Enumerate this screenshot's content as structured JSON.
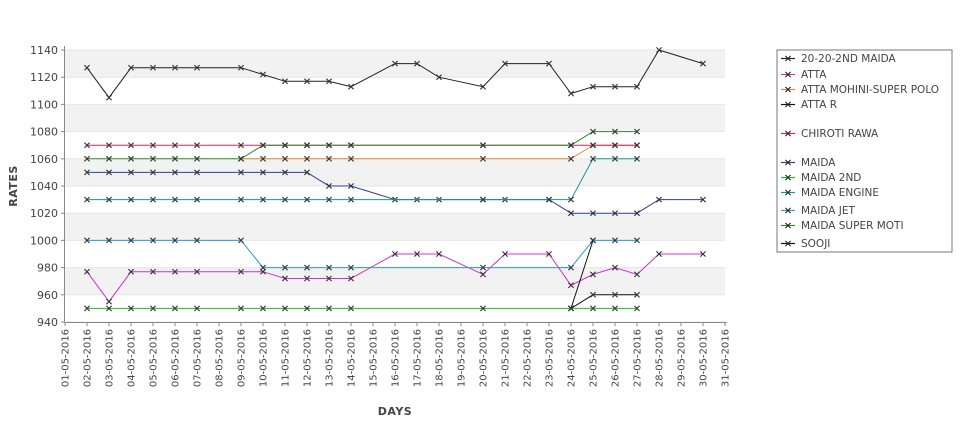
{
  "chart_data": {
    "type": "line",
    "title": "",
    "xlabel": "DAYS",
    "ylabel": "RATES",
    "ylim": [
      940,
      1140
    ],
    "yticks": [
      940,
      960,
      980,
      1000,
      1020,
      1040,
      1060,
      1080,
      1100,
      1120,
      1140
    ],
    "grid": true,
    "legend_position": "right",
    "x_tick_labels": [
      "01-05-2016",
      "02-05-2016",
      "03-05-2016",
      "04-05-2016",
      "05-05-2016",
      "06-05-2016",
      "07-05-2016",
      "08-05-2016",
      "09-05-2016",
      "10-05-2016",
      "11-05-2016",
      "12-05-2016",
      "13-05-2016",
      "14-05-2016",
      "15-05-2016",
      "16-05-2016",
      "17-05-2016",
      "18-05-2016",
      "19-05-2016",
      "20-05-2016",
      "21-05-2016",
      "22-05-2016",
      "23-05-2016",
      "24-05-2016",
      "25-05-2016",
      "26-05-2016",
      "27-05-2016",
      "28-05-2016",
      "29-05-2016",
      "30-05-2016",
      "31-05-2016"
    ],
    "series": [
      {
        "name": "20-20-2ND MAIDA",
        "color": "#222222",
        "points": [
          [
            "02-05-2016",
            1127
          ],
          [
            "03-05-2016",
            1105
          ],
          [
            "04-05-2016",
            1127
          ],
          [
            "05-05-2016",
            1127
          ],
          [
            "06-05-2016",
            1127
          ],
          [
            "07-05-2016",
            1127
          ],
          [
            "09-05-2016",
            1127
          ],
          [
            "10-05-2016",
            1122
          ],
          [
            "11-05-2016",
            1117
          ],
          [
            "12-05-2016",
            1117
          ],
          [
            "13-05-2016",
            1117
          ],
          [
            "14-05-2016",
            1113
          ],
          [
            "16-05-2016",
            1130
          ],
          [
            "17-05-2016",
            1130
          ],
          [
            "18-05-2016",
            1120
          ],
          [
            "20-05-2016",
            1113
          ],
          [
            "21-05-2016",
            1130
          ],
          [
            "23-05-2016",
            1130
          ],
          [
            "24-05-2016",
            1108
          ],
          [
            "25-05-2016",
            1113
          ],
          [
            "26-05-2016",
            1113
          ],
          [
            "27-05-2016",
            1113
          ],
          [
            "28-05-2016",
            1140
          ],
          [
            "30-05-2016",
            1130
          ]
        ]
      },
      {
        "name": "ATTA",
        "color": "#cc33cc",
        "points": [
          [
            "02-05-2016",
            977
          ],
          [
            "03-05-2016",
            955
          ],
          [
            "04-05-2016",
            977
          ],
          [
            "05-05-2016",
            977
          ],
          [
            "06-05-2016",
            977
          ],
          [
            "07-05-2016",
            977
          ],
          [
            "09-05-2016",
            977
          ],
          [
            "10-05-2016",
            977
          ],
          [
            "11-05-2016",
            972
          ],
          [
            "12-05-2016",
            972
          ],
          [
            "13-05-2016",
            972
          ],
          [
            "14-05-2016",
            972
          ],
          [
            "16-05-2016",
            990
          ],
          [
            "17-05-2016",
            990
          ],
          [
            "18-05-2016",
            990
          ],
          [
            "20-05-2016",
            975
          ],
          [
            "21-05-2016",
            990
          ],
          [
            "23-05-2016",
            990
          ],
          [
            "24-05-2016",
            967
          ],
          [
            "25-05-2016",
            975
          ],
          [
            "26-05-2016",
            980
          ],
          [
            "27-05-2016",
            975
          ],
          [
            "28-05-2016",
            990
          ],
          [
            "30-05-2016",
            990
          ]
        ]
      },
      {
        "name": "ATTA MOHINI-SUPER POLO",
        "color": "#e08a2a",
        "points": [
          [
            "09-05-2016",
            1060
          ],
          [
            "10-05-2016",
            1060
          ],
          [
            "11-05-2016",
            1060
          ],
          [
            "12-05-2016",
            1060
          ],
          [
            "13-05-2016",
            1060
          ],
          [
            "14-05-2016",
            1060
          ],
          [
            "20-05-2016",
            1060
          ],
          [
            "24-05-2016",
            1060
          ],
          [
            "25-05-2016",
            1070
          ],
          [
            "26-05-2016",
            1070
          ],
          [
            "27-05-2016",
            1070
          ]
        ]
      },
      {
        "name": "ATTA R",
        "color": "#111111",
        "points": [
          [
            "24-05-2016",
            950
          ],
          [
            "25-05-2016",
            960
          ],
          [
            "26-05-2016",
            960
          ],
          [
            "27-05-2016",
            960
          ]
        ]
      },
      {
        "name": "CHIROTI RAWA",
        "color": "#dd2266",
        "points": [
          [
            "02-05-2016",
            1070
          ],
          [
            "03-05-2016",
            1070
          ],
          [
            "04-05-2016",
            1070
          ],
          [
            "05-05-2016",
            1070
          ],
          [
            "06-05-2016",
            1070
          ],
          [
            "07-05-2016",
            1070
          ],
          [
            "09-05-2016",
            1070
          ],
          [
            "10-05-2016",
            1070
          ],
          [
            "11-05-2016",
            1070
          ],
          [
            "12-05-2016",
            1070
          ],
          [
            "13-05-2016",
            1070
          ],
          [
            "14-05-2016",
            1070
          ],
          [
            "20-05-2016",
            1070
          ],
          [
            "24-05-2016",
            1070
          ],
          [
            "25-05-2016",
            1070
          ],
          [
            "26-05-2016",
            1070
          ],
          [
            "27-05-2016",
            1070
          ]
        ]
      },
      {
        "name": "MAIDA",
        "color": "#2c3f99",
        "points": [
          [
            "02-05-2016",
            1050
          ],
          [
            "03-05-2016",
            1050
          ],
          [
            "04-05-2016",
            1050
          ],
          [
            "05-05-2016",
            1050
          ],
          [
            "06-05-2016",
            1050
          ],
          [
            "07-05-2016",
            1050
          ],
          [
            "09-05-2016",
            1050
          ],
          [
            "10-05-2016",
            1050
          ],
          [
            "11-05-2016",
            1050
          ],
          [
            "12-05-2016",
            1050
          ],
          [
            "13-05-2016",
            1040
          ],
          [
            "14-05-2016",
            1040
          ],
          [
            "16-05-2016",
            1030
          ],
          [
            "17-05-2016",
            1030
          ],
          [
            "18-05-2016",
            1030
          ],
          [
            "20-05-2016",
            1030
          ],
          [
            "21-05-2016",
            1030
          ],
          [
            "23-05-2016",
            1030
          ],
          [
            "24-05-2016",
            1020
          ],
          [
            "25-05-2016",
            1020
          ],
          [
            "26-05-2016",
            1020
          ],
          [
            "27-05-2016",
            1020
          ],
          [
            "28-05-2016",
            1030
          ],
          [
            "30-05-2016",
            1030
          ]
        ]
      },
      {
        "name": "MAIDA 2ND",
        "color": "#22bb22",
        "points": [
          [
            "02-05-2016",
            950
          ],
          [
            "03-05-2016",
            950
          ],
          [
            "04-05-2016",
            950
          ],
          [
            "05-05-2016",
            950
          ],
          [
            "06-05-2016",
            950
          ],
          [
            "07-05-2016",
            950
          ],
          [
            "09-05-2016",
            950
          ],
          [
            "10-05-2016",
            950
          ],
          [
            "11-05-2016",
            950
          ],
          [
            "12-05-2016",
            950
          ],
          [
            "13-05-2016",
            950
          ],
          [
            "14-05-2016",
            950
          ],
          [
            "20-05-2016",
            950
          ],
          [
            "24-05-2016",
            950
          ],
          [
            "25-05-2016",
            950
          ],
          [
            "26-05-2016",
            950
          ],
          [
            "27-05-2016",
            950
          ]
        ]
      },
      {
        "name": "MAIDA ENGINE",
        "color": "#119999",
        "points": [
          [
            "02-05-2016",
            1030
          ],
          [
            "03-05-2016",
            1030
          ],
          [
            "04-05-2016",
            1030
          ],
          [
            "05-05-2016",
            1030
          ],
          [
            "06-05-2016",
            1030
          ],
          [
            "07-05-2016",
            1030
          ],
          [
            "09-05-2016",
            1030
          ],
          [
            "10-05-2016",
            1030
          ],
          [
            "11-05-2016",
            1030
          ],
          [
            "12-05-2016",
            1030
          ],
          [
            "13-05-2016",
            1030
          ],
          [
            "14-05-2016",
            1030
          ],
          [
            "20-05-2016",
            1030
          ],
          [
            "23-05-2016",
            1030
          ],
          [
            "24-05-2016",
            1030
          ],
          [
            "25-05-2016",
            1060
          ],
          [
            "26-05-2016",
            1060
          ],
          [
            "27-05-2016",
            1060
          ]
        ]
      },
      {
        "name": "MAIDA JET",
        "color": "#2a9bd0",
        "points": [
          [
            "02-05-2016",
            1000
          ],
          [
            "03-05-2016",
            1000
          ],
          [
            "04-05-2016",
            1000
          ],
          [
            "05-05-2016",
            1000
          ],
          [
            "06-05-2016",
            1000
          ],
          [
            "07-05-2016",
            1000
          ],
          [
            "09-05-2016",
            1000
          ],
          [
            "10-05-2016",
            980
          ],
          [
            "11-05-2016",
            980
          ],
          [
            "12-05-2016",
            980
          ],
          [
            "13-05-2016",
            980
          ],
          [
            "14-05-2016",
            980
          ],
          [
            "20-05-2016",
            980
          ],
          [
            "24-05-2016",
            980
          ],
          [
            "25-05-2016",
            1000
          ],
          [
            "26-05-2016",
            1000
          ],
          [
            "27-05-2016",
            1000
          ]
        ]
      },
      {
        "name": "MAIDA SUPER MOTI",
        "color": "#2e8b2e",
        "points": [
          [
            "02-05-2016",
            1060
          ],
          [
            "03-05-2016",
            1060
          ],
          [
            "04-05-2016",
            1060
          ],
          [
            "05-05-2016",
            1060
          ],
          [
            "06-05-2016",
            1060
          ],
          [
            "07-05-2016",
            1060
          ],
          [
            "09-05-2016",
            1060
          ],
          [
            "10-05-2016",
            1070
          ],
          [
            "11-05-2016",
            1070
          ],
          [
            "12-05-2016",
            1070
          ],
          [
            "13-05-2016",
            1070
          ],
          [
            "14-05-2016",
            1070
          ],
          [
            "20-05-2016",
            1070
          ],
          [
            "24-05-2016",
            1070
          ],
          [
            "25-05-2016",
            1080
          ],
          [
            "26-05-2016",
            1080
          ],
          [
            "27-05-2016",
            1080
          ]
        ]
      },
      {
        "name": "SOOJI",
        "color": "#111111",
        "points": [
          [
            "24-05-2016",
            950
          ],
          [
            "25-05-2016",
            1000
          ]
        ]
      }
    ]
  }
}
